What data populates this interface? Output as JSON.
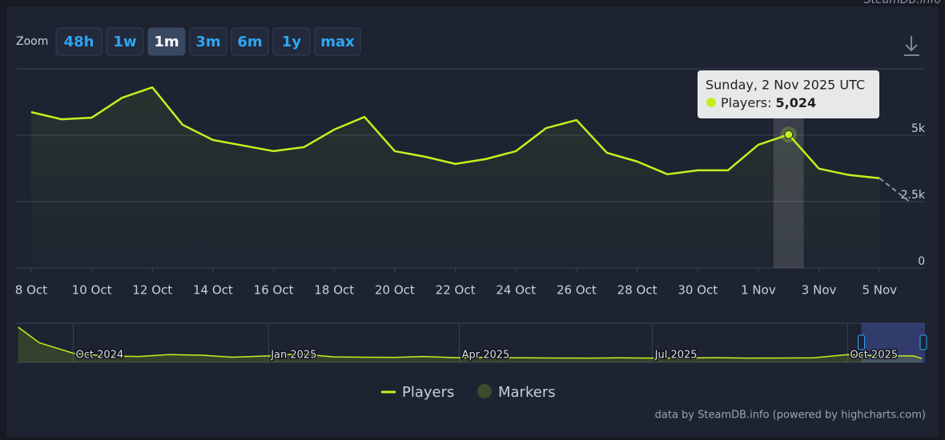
{
  "chart_data": {
    "type": "line",
    "watermark": "SteamDB.info",
    "zoom": {
      "label": "Zoom",
      "buttons": [
        "48h",
        "1w",
        "1m",
        "3m",
        "6m",
        "1y",
        "max"
      ],
      "selected": 2
    },
    "x": [
      "2025-10-08",
      "2025-10-09",
      "2025-10-10",
      "2025-10-11",
      "2025-10-12",
      "2025-10-13",
      "2025-10-14",
      "2025-10-15",
      "2025-10-16",
      "2025-10-17",
      "2025-10-18",
      "2025-10-19",
      "2025-10-20",
      "2025-10-21",
      "2025-10-22",
      "2025-10-23",
      "2025-10-24",
      "2025-10-25",
      "2025-10-26",
      "2025-10-27",
      "2025-10-28",
      "2025-10-29",
      "2025-10-30",
      "2025-10-31",
      "2025-11-01",
      "2025-11-02",
      "2025-11-03",
      "2025-11-04",
      "2025-11-05",
      "2025-11-06"
    ],
    "series": [
      {
        "name": "Players",
        "color": "#c5f01e",
        "values": [
          5870,
          5600,
          5660,
          6410,
          6800,
          5390,
          4820,
          4610,
          4400,
          4550,
          5210,
          5690,
          4400,
          4190,
          3920,
          4100,
          4400,
          5270,
          5570,
          4340,
          4010,
          3530,
          3680,
          3680,
          4640,
          5024,
          3740,
          3500,
          3380,
          2490
        ]
      }
    ],
    "incomplete_last": true,
    "markers": {
      "name": "Markers",
      "color": "#3e4a2c"
    },
    "xlim": [
      "2025-10-07T12:00:00Z",
      "2025-11-06T12:00:00Z"
    ],
    "xticks": [
      {
        "value": "2025-10-08",
        "label": "8 Oct"
      },
      {
        "value": "2025-10-10",
        "label": "10 Oct"
      },
      {
        "value": "2025-10-12",
        "label": "12 Oct"
      },
      {
        "value": "2025-10-14",
        "label": "14 Oct"
      },
      {
        "value": "2025-10-16",
        "label": "16 Oct"
      },
      {
        "value": "2025-10-18",
        "label": "18 Oct"
      },
      {
        "value": "2025-10-20",
        "label": "20 Oct"
      },
      {
        "value": "2025-10-22",
        "label": "22 Oct"
      },
      {
        "value": "2025-10-24",
        "label": "24 Oct"
      },
      {
        "value": "2025-10-26",
        "label": "26 Oct"
      },
      {
        "value": "2025-10-28",
        "label": "28 Oct"
      },
      {
        "value": "2025-10-30",
        "label": "30 Oct"
      },
      {
        "value": "2025-11-01",
        "label": "1 Nov"
      },
      {
        "value": "2025-11-03",
        "label": "3 Nov"
      },
      {
        "value": "2025-11-05",
        "label": "5 Nov"
      }
    ],
    "ylim": [
      0,
      7500
    ],
    "yticks": [
      0,
      {
        "value": 2500,
        "label": "2.5k"
      },
      {
        "value": 5000,
        "label": "5k"
      }
    ],
    "grid": true,
    "tooltip": {
      "x": "2025-11-02",
      "title": "Sunday, 2 Nov 2025 UTC",
      "label": "Players:",
      "value": "5,024"
    },
    "navigator": {
      "x": [
        "2024-09-05",
        "2024-09-15",
        "2024-10-01",
        "2024-10-15",
        "2024-11-01",
        "2024-11-15",
        "2024-12-01",
        "2024-12-15",
        "2025-01-01",
        "2025-01-15",
        "2025-02-01",
        "2025-02-15",
        "2025-03-01",
        "2025-03-15",
        "2025-04-01",
        "2025-04-15",
        "2025-05-01",
        "2025-05-15",
        "2025-06-01",
        "2025-06-15",
        "2025-07-01",
        "2025-07-15",
        "2025-08-01",
        "2025-08-15",
        "2025-09-01",
        "2025-09-15",
        "2025-10-01",
        "2025-10-15",
        "2025-11-01",
        "2025-11-05"
      ],
      "values": [
        27000,
        15000,
        7000,
        5000,
        4500,
        6000,
        5500,
        4000,
        5000,
        6500,
        4200,
        4000,
        3800,
        4500,
        3500,
        3800,
        3500,
        3400,
        3300,
        3500,
        3300,
        3400,
        3600,
        3300,
        3400,
        3500,
        6000,
        5000,
        5000,
        3000
      ],
      "xlim": [
        "2024-09-04T00:00:00Z",
        "2025-11-06T12:00:00Z"
      ],
      "ylim": [
        0,
        30000
      ],
      "xticks": [
        {
          "value": "2024-10-01",
          "label": "Oct 2024"
        },
        {
          "value": "2025-01-01",
          "label": "Jan 2025"
        },
        {
          "value": "2025-04-01",
          "label": "Apr 2025"
        },
        {
          "value": "2025-07-01",
          "label": "Jul 2025"
        },
        {
          "value": "2025-10-01",
          "label": "Oct 2025"
        }
      ]
    },
    "credit": "data by SteamDB.info (powered by highcharts.com)"
  }
}
